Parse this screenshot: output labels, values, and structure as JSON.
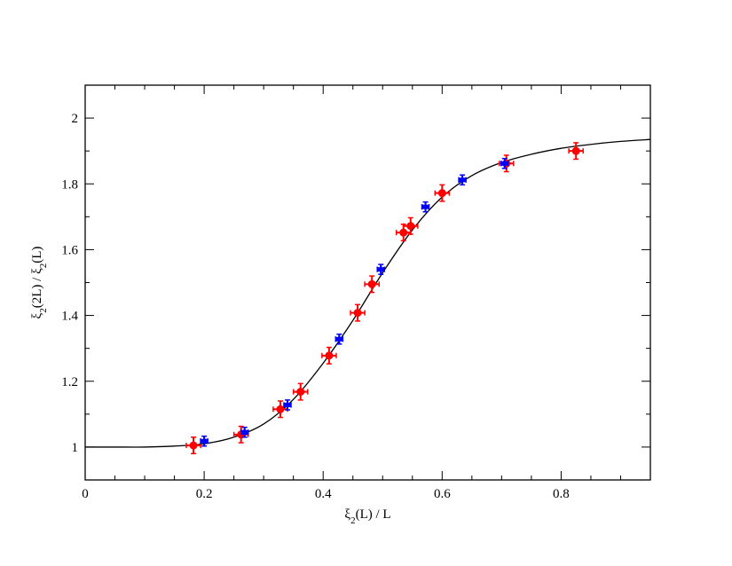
{
  "chart_data": {
    "type": "scatter",
    "title": "",
    "xlabel": {
      "main": "ξ",
      "sub": "2",
      "rest": "(L) / L"
    },
    "ylabel": {
      "main": "ξ",
      "sub1": "2",
      "mid": "(2L) / ξ",
      "sub2": "2",
      "rest": "(L)"
    },
    "xlim": [
      0,
      0.95
    ],
    "ylim": [
      0.9,
      2.1
    ],
    "x_ticks": [
      0,
      0.2,
      0.4,
      0.6,
      0.8
    ],
    "x_tick_labels": [
      "0",
      "0.2",
      "0.4",
      "0.6",
      "0.8"
    ],
    "x_minor_step": 0.05,
    "y_ticks": [
      1,
      1.2,
      1.4,
      1.6,
      1.8,
      2
    ],
    "y_tick_labels": [
      "1",
      "1.2",
      "1.4",
      "1.6",
      "1.8",
      "2"
    ],
    "y_minor_step": 0.1,
    "grid": false,
    "series": [
      {
        "color": "#ff0000",
        "marker": "circle",
        "points": [
          {
            "x": 0.182,
            "y": 1.005,
            "xerr": 0.012,
            "yerr": 0.025
          },
          {
            "x": 0.262,
            "y": 1.038,
            "xerr": 0.012,
            "yerr": 0.025
          },
          {
            "x": 0.328,
            "y": 1.115,
            "xerr": 0.012,
            "yerr": 0.025
          },
          {
            "x": 0.362,
            "y": 1.168,
            "xerr": 0.012,
            "yerr": 0.025
          },
          {
            "x": 0.41,
            "y": 1.278,
            "xerr": 0.012,
            "yerr": 0.025
          },
          {
            "x": 0.458,
            "y": 1.408,
            "xerr": 0.012,
            "yerr": 0.025
          },
          {
            "x": 0.482,
            "y": 1.495,
            "xerr": 0.012,
            "yerr": 0.025
          },
          {
            "x": 0.535,
            "y": 1.652,
            "xerr": 0.012,
            "yerr": 0.025
          },
          {
            "x": 0.547,
            "y": 1.672,
            "xerr": 0.012,
            "yerr": 0.025
          },
          {
            "x": 0.6,
            "y": 1.772,
            "xerr": 0.012,
            "yerr": 0.025
          },
          {
            "x": 0.708,
            "y": 1.862,
            "xerr": 0.012,
            "yerr": 0.025
          },
          {
            "x": 0.825,
            "y": 1.9,
            "xerr": 0.012,
            "yerr": 0.025
          }
        ]
      },
      {
        "color": "#0000ff",
        "marker": "star",
        "points": [
          {
            "x": 0.2,
            "y": 1.018,
            "xerr": 0.006,
            "yerr": 0.015
          },
          {
            "x": 0.268,
            "y": 1.045,
            "xerr": 0.006,
            "yerr": 0.015
          },
          {
            "x": 0.34,
            "y": 1.128,
            "xerr": 0.006,
            "yerr": 0.015
          },
          {
            "x": 0.427,
            "y": 1.328,
            "xerr": 0.006,
            "yerr": 0.015
          },
          {
            "x": 0.497,
            "y": 1.54,
            "xerr": 0.006,
            "yerr": 0.015
          },
          {
            "x": 0.572,
            "y": 1.73,
            "xerr": 0.006,
            "yerr": 0.015
          },
          {
            "x": 0.634,
            "y": 1.812,
            "xerr": 0.006,
            "yerr": 0.015
          },
          {
            "x": 0.705,
            "y": 1.862,
            "xerr": 0.006,
            "yerr": 0.015
          }
        ]
      }
    ],
    "fit_curve": {
      "color": "#000000",
      "points": [
        [
          0.0,
          1.0
        ],
        [
          0.05,
          1.0
        ],
        [
          0.1,
          1.0
        ],
        [
          0.15,
          1.003
        ],
        [
          0.2,
          1.01
        ],
        [
          0.25,
          1.03
        ],
        [
          0.3,
          1.07
        ],
        [
          0.35,
          1.145
        ],
        [
          0.4,
          1.255
        ],
        [
          0.45,
          1.385
        ],
        [
          0.5,
          1.53
        ],
        [
          0.55,
          1.66
        ],
        [
          0.6,
          1.76
        ],
        [
          0.65,
          1.825
        ],
        [
          0.7,
          1.865
        ],
        [
          0.75,
          1.89
        ],
        [
          0.8,
          1.908
        ],
        [
          0.85,
          1.92
        ],
        [
          0.9,
          1.929
        ],
        [
          0.95,
          1.935
        ]
      ]
    }
  }
}
